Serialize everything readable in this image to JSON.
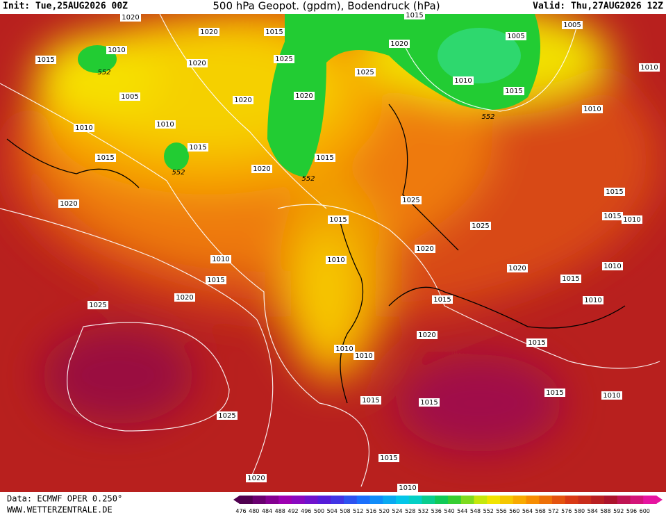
{
  "header": {
    "init": "Init: Tue,25AUG2026 00Z",
    "title": "500 hPa Geopot. (gpdm), Bodendruck (hPa)",
    "valid": "Valid: Thu,27AUG2026 12Z"
  },
  "footer": {
    "source": "Data: ECMWF OPER 0.250°",
    "url": "WWW.WETTERZENTRALE.DE"
  },
  "colorbar": {
    "labels": [
      476,
      480,
      484,
      488,
      492,
      496,
      500,
      504,
      508,
      512,
      516,
      520,
      524,
      528,
      532,
      536,
      540,
      544,
      548,
      552,
      556,
      560,
      564,
      568,
      572,
      576,
      580,
      584,
      588,
      592,
      596,
      600
    ]
  },
  "map": {
    "isobar_labels": [
      "1020",
      "1015",
      "1005",
      "1020",
      "1015",
      "1020",
      "1005",
      "1010",
      "1015",
      "1020",
      "1025",
      "1010",
      "1025",
      "1010",
      "1015",
      "1005",
      "1020",
      "1020",
      "1010",
      "1010",
      "1010",
      "1015",
      "1015",
      "1015",
      "1020",
      "1015",
      "1020",
      "1025",
      "1015",
      "1010",
      "1015",
      "1025",
      "1020",
      "1010",
      "1010",
      "1010",
      "1020",
      "1015",
      "1015",
      "1020",
      "1015",
      "1010",
      "1025",
      "1020",
      "1015",
      "1010",
      "1010",
      "1015",
      "1015",
      "1015",
      "1010",
      "1025",
      "1015",
      "1020",
      "1010"
    ],
    "contour_labels": [
      "552",
      "552",
      "552",
      "552"
    ]
  }
}
